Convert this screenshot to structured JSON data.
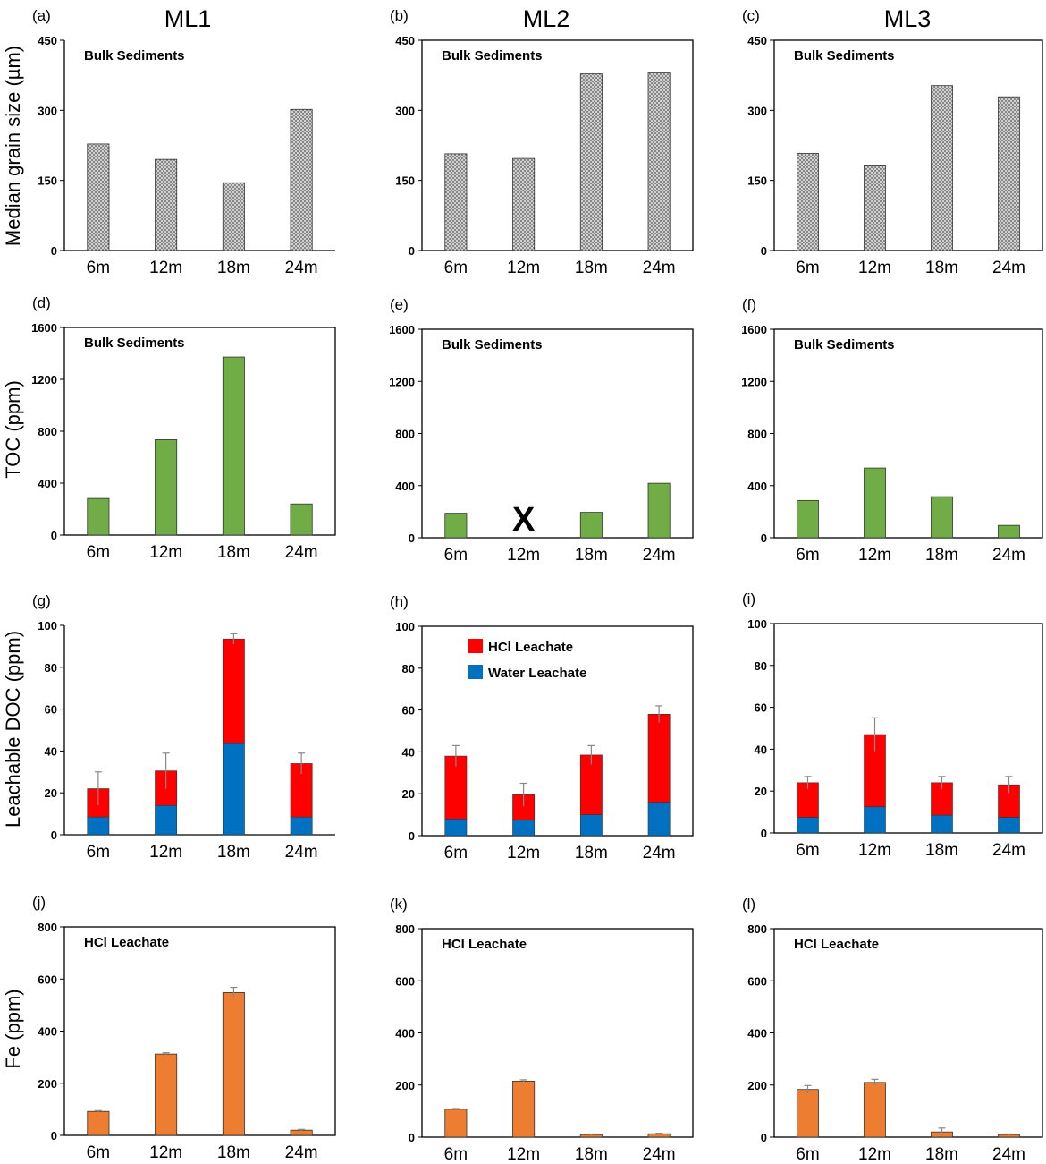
{
  "columns": [
    "ML1",
    "ML2",
    "ML3"
  ],
  "row_labels": [
    "Median grain size (µm)",
    "TOC (ppm)",
    "Leachable DOC  (ppm)",
    "Fe (ppm)"
  ],
  "colors": {
    "grain": "#aaaaaa",
    "toc": "#70ad47",
    "hcl": "#ff0000",
    "water": "#0070c0",
    "fe": "#ed7d31",
    "error": "#888888"
  },
  "chart_data": [
    {
      "id": "a",
      "label": "(a)",
      "type": "bar",
      "column": "ML1",
      "title": "Median grain size",
      "note": "Bulk Sediments",
      "categories": [
        "6m",
        "12m",
        "18m",
        "24m"
      ],
      "values": [
        228,
        195,
        145,
        302
      ],
      "ylabel": "Median grain size (µm)",
      "ylim": [
        0,
        450
      ],
      "yticks": [
        0,
        150,
        300,
        450
      ]
    },
    {
      "id": "b",
      "label": "(b)",
      "type": "bar",
      "column": "ML2",
      "title": "Median grain size",
      "note": "Bulk Sediments",
      "categories": [
        "6m",
        "12m",
        "18m",
        "24m"
      ],
      "values": [
        207,
        197,
        378,
        380
      ],
      "ylabel": "",
      "ylim": [
        0,
        450
      ],
      "yticks": [
        0,
        150,
        300,
        450
      ]
    },
    {
      "id": "c",
      "label": "(c)",
      "type": "bar",
      "column": "ML3",
      "title": "Median grain size",
      "note": "Bulk Sediments",
      "categories": [
        "6m",
        "12m",
        "18m",
        "24m"
      ],
      "values": [
        208,
        183,
        353,
        329
      ],
      "ylabel": "",
      "ylim": [
        0,
        450
      ],
      "yticks": [
        0,
        150,
        300,
        450
      ]
    },
    {
      "id": "d",
      "label": "(d)",
      "type": "bar",
      "column": "ML1",
      "title": "TOC",
      "note": "Bulk Sediments",
      "categories": [
        "6m",
        "12m",
        "18m",
        "24m"
      ],
      "values": [
        282,
        735,
        1372,
        240
      ],
      "ylabel": "TOC (ppm)",
      "ylim": [
        0,
        1600
      ],
      "yticks": [
        0,
        400,
        800,
        1200,
        1600
      ]
    },
    {
      "id": "e",
      "label": "(e)",
      "type": "bar",
      "column": "ML2",
      "title": "TOC",
      "note": "Bulk Sediments",
      "categories": [
        "6m",
        "12m",
        "18m",
        "24m"
      ],
      "values": [
        188,
        null,
        195,
        418
      ],
      "missing_marker": "X",
      "ylabel": "",
      "ylim": [
        0,
        1600
      ],
      "yticks": [
        0,
        400,
        800,
        1200,
        1600
      ]
    },
    {
      "id": "f",
      "label": "(f)",
      "type": "bar",
      "column": "ML3",
      "title": "TOC",
      "note": "Bulk Sediments",
      "categories": [
        "6m",
        "12m",
        "18m",
        "24m"
      ],
      "values": [
        286,
        535,
        315,
        95
      ],
      "ylabel": "",
      "ylim": [
        0,
        1600
      ],
      "yticks": [
        0,
        400,
        800,
        1200,
        1600
      ]
    },
    {
      "id": "g",
      "label": "(g)",
      "type": "bar",
      "stacked": true,
      "column": "ML1",
      "title": "Leachable DOC",
      "categories": [
        "6m",
        "12m",
        "18m",
        "24m"
      ],
      "series": [
        {
          "name": "Water Leachate",
          "values": [
            8.5,
            14,
            43.5,
            8.5
          ]
        },
        {
          "name": "HCl Leachate",
          "values": [
            13.5,
            16.5,
            50,
            25.5
          ]
        }
      ],
      "error_tops": [
        30,
        39,
        96,
        39
      ],
      "ylabel": "Leachable DOC  (ppm)",
      "ylim": [
        0,
        100
      ],
      "yticks": [
        0,
        20,
        40,
        60,
        80,
        100
      ]
    },
    {
      "id": "h",
      "label": "(h)",
      "type": "bar",
      "stacked": true,
      "column": "ML2",
      "title": "Leachable DOC",
      "categories": [
        "6m",
        "12m",
        "18m",
        "24m"
      ],
      "series": [
        {
          "name": "Water Leachate",
          "values": [
            8,
            7.5,
            10,
            16
          ]
        },
        {
          "name": "HCl Leachate",
          "values": [
            30,
            12,
            28.5,
            42
          ]
        }
      ],
      "error_tops": [
        43,
        25,
        43,
        62
      ],
      "legend": [
        "HCl Leachate",
        "Water Leachate"
      ],
      "legend_position": "top-center",
      "ylabel": "",
      "ylim": [
        0,
        100
      ],
      "yticks": [
        0,
        20,
        40,
        60,
        80,
        100
      ]
    },
    {
      "id": "i",
      "label": "(i)",
      "type": "bar",
      "stacked": true,
      "column": "ML3",
      "title": "Leachable DOC",
      "categories": [
        "6m",
        "12m",
        "18m",
        "24m"
      ],
      "series": [
        {
          "name": "Water Leachate",
          "values": [
            7.5,
            12.5,
            8.5,
            7.5
          ]
        },
        {
          "name": "HCl Leachate",
          "values": [
            16.5,
            34.5,
            15.5,
            15.5
          ]
        }
      ],
      "error_tops": [
        27,
        55,
        27,
        27
      ],
      "ylabel": "",
      "ylim": [
        0,
        100
      ],
      "yticks": [
        0,
        20,
        40,
        60,
        80,
        100
      ]
    },
    {
      "id": "j",
      "label": "(j)",
      "type": "bar",
      "column": "ML1",
      "title": "Fe",
      "note": "HCl Leachate",
      "categories": [
        "6m",
        "12m",
        "18m",
        "24m"
      ],
      "values": [
        92,
        312,
        548,
        20
      ],
      "errors": [
        3,
        5,
        20,
        3
      ],
      "ylabel": "Fe (ppm)",
      "ylim": [
        0,
        800
      ],
      "yticks": [
        0,
        200,
        400,
        600,
        800
      ]
    },
    {
      "id": "k",
      "label": "(k)",
      "type": "bar",
      "column": "ML2",
      "title": "Fe",
      "note": "HCl Leachate",
      "categories": [
        "6m",
        "12m",
        "18m",
        "24m"
      ],
      "values": [
        107,
        215,
        10,
        13
      ],
      "errors": [
        3,
        5,
        2,
        2
      ],
      "ylabel": "",
      "ylim": [
        0,
        800
      ],
      "yticks": [
        0,
        200,
        400,
        600,
        800
      ]
    },
    {
      "id": "l",
      "label": "(l)",
      "type": "bar",
      "column": "ML3",
      "title": "Fe",
      "note": "HCl Leachate",
      "categories": [
        "6m",
        "12m",
        "18m",
        "24m"
      ],
      "values": [
        183,
        210,
        20,
        10
      ],
      "errors": [
        15,
        12,
        15,
        2
      ],
      "ylabel": "",
      "ylim": [
        0,
        800
      ],
      "yticks": [
        0,
        200,
        400,
        600,
        800
      ]
    }
  ]
}
